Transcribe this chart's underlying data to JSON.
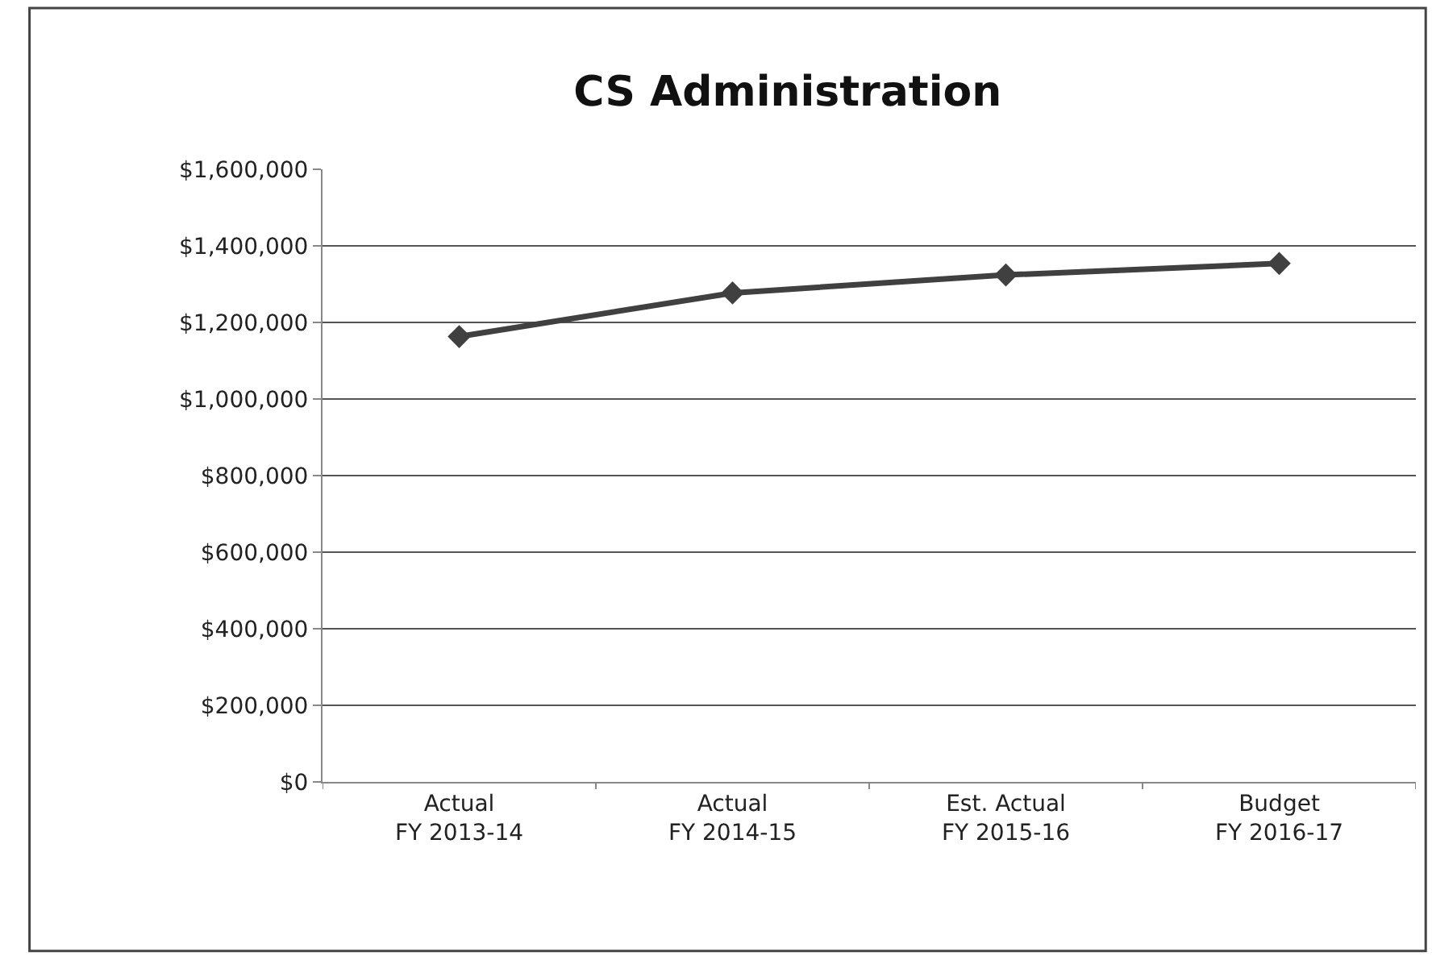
{
  "chart_data": {
    "type": "line",
    "title": "CS Administration",
    "categories": [
      "Actual\nFY 2013-14",
      "Actual\nFY 2014-15",
      "Est. Actual\nFY 2015-16",
      "Budget\nFY 2016-17"
    ],
    "series": [
      {
        "color": "#404040",
        "values": [
          1163000,
          1277000,
          1324000,
          1354000
        ]
      }
    ],
    "ylim": [
      0,
      1600000
    ],
    "yticks": [
      {
        "value": 0,
        "label": "$0"
      },
      {
        "value": 200000,
        "label": "$200,000"
      },
      {
        "value": 400000,
        "label": "$400,000"
      },
      {
        "value": 600000,
        "label": "$600,000"
      },
      {
        "value": 800000,
        "label": "$800,000"
      },
      {
        "value": 1000000,
        "label": "$1,000,000"
      },
      {
        "value": 1200000,
        "label": "$1,200,000"
      },
      {
        "value": 1400000,
        "label": "$1,400,000"
      },
      {
        "value": 1600000,
        "label": "$1,600,000"
      }
    ],
    "grid": "y",
    "marker": "diamond",
    "line_style": "solid"
  }
}
